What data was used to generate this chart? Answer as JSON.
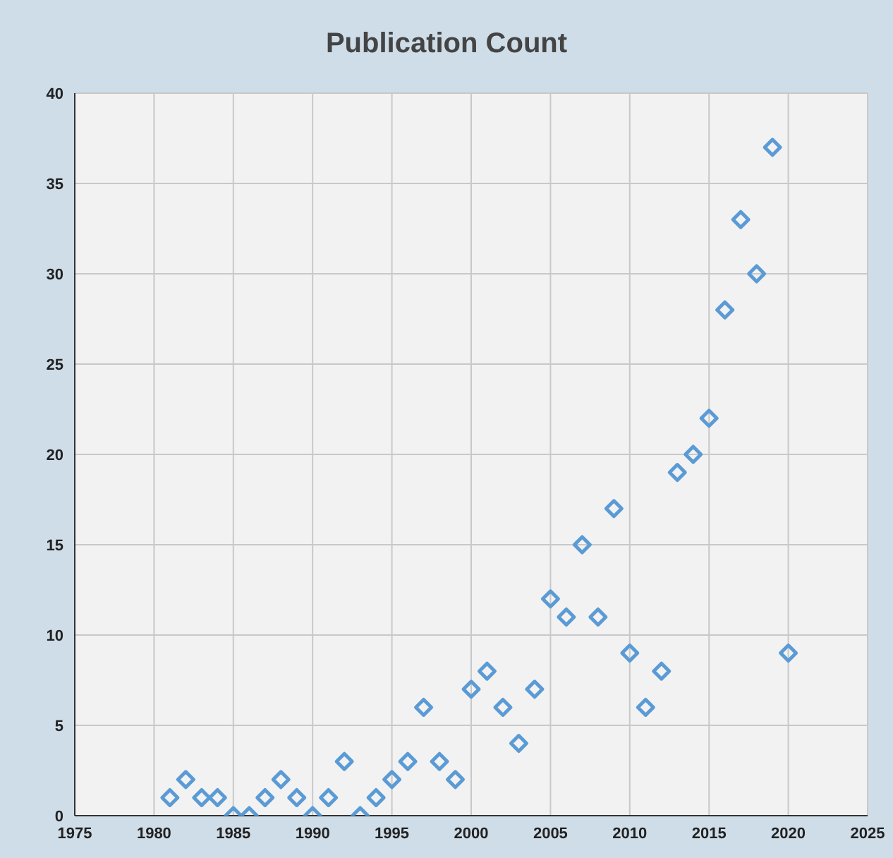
{
  "chart_data": {
    "type": "scatter",
    "title": "Publication Count",
    "x": [
      1981,
      1982,
      1983,
      1984,
      1985,
      1986,
      1987,
      1988,
      1989,
      1990,
      1991,
      1992,
      1993,
      1994,
      1995,
      1996,
      1997,
      1998,
      1999,
      2000,
      2001,
      2002,
      2003,
      2004,
      2005,
      2006,
      2007,
      2008,
      2009,
      2010,
      2011,
      2012,
      2013,
      2014,
      2015,
      2016,
      2017,
      2018,
      2019,
      2020
    ],
    "series": [
      {
        "color": "#5b9bd5",
        "values": [
          1,
          2,
          1,
          1,
          0,
          0,
          1,
          2,
          1,
          0,
          1,
          3,
          0,
          1,
          2,
          3,
          6,
          3,
          2,
          7,
          8,
          6,
          4,
          7,
          12,
          11,
          15,
          11,
          17,
          9,
          6,
          8,
          19,
          20,
          22,
          28,
          33,
          30,
          37,
          9
        ]
      }
    ],
    "xlim": [
      1975,
      2025
    ],
    "xticks": [
      1975,
      1980,
      1985,
      1990,
      1995,
      2000,
      2005,
      2010,
      2015,
      2020,
      2025
    ],
    "ylim": [
      0,
      40
    ],
    "yticks": [
      0,
      5,
      10,
      15,
      20,
      25,
      30,
      35,
      40
    ],
    "grid": true,
    "marker": "diamond"
  }
}
